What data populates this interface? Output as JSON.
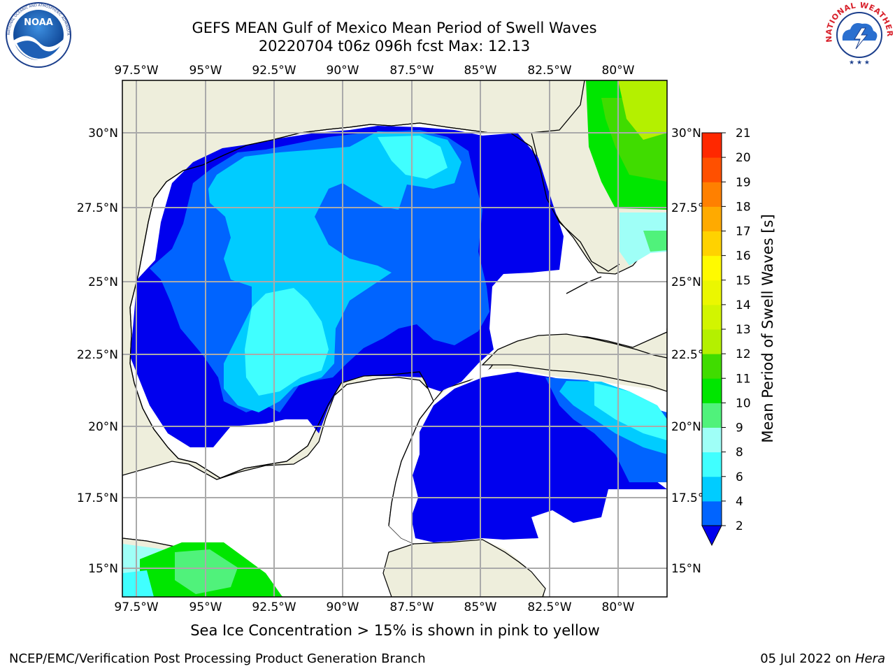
{
  "header": {
    "title": "GEFS MEAN Gulf of Mexico Mean Period of Swell Waves",
    "subtitle": "20220704 t06z 096h fcst   Max: 12.13"
  },
  "map": {
    "lon_ticks": [
      "97.5°W",
      "95°W",
      "92.5°W",
      "90°W",
      "87.5°W",
      "85°W",
      "82.5°W",
      "80°W"
    ],
    "lat_ticks": [
      "30°N",
      "27.5°N",
      "25°N",
      "22.5°N",
      "20°N",
      "17.5°N",
      "15°N"
    ],
    "lon_range": [
      -98,
      -78.3
    ],
    "lat_range": [
      14,
      31.8
    ],
    "land_color": "#eeeedc",
    "ocean_nodata_color": "#ffffff",
    "grid": true
  },
  "colorbar": {
    "label": "Mean Period of Swell Waves [s]",
    "levels": [
      2,
      4,
      6,
      8,
      9,
      10,
      11,
      12,
      13,
      14,
      15,
      16,
      17,
      18,
      19,
      20,
      21
    ],
    "tick_labels": [
      "2",
      "4",
      "6",
      "8",
      "9",
      "10",
      "11",
      "12",
      "13",
      "14",
      "15",
      "16",
      "17",
      "18",
      "19",
      "20",
      "21"
    ],
    "colors": [
      "#0064ff",
      "#00ccff",
      "#40ffff",
      "#9ffff7",
      "#50f27b",
      "#00e600",
      "#40dc00",
      "#b4f000",
      "#d2f500",
      "#ebf700",
      "#fffa00",
      "#ffd200",
      "#ffaa00",
      "#ff8000",
      "#ff5000",
      "#ff2800",
      "#ff0000"
    ],
    "under_color": "#0000ee",
    "extend": "min"
  },
  "legend_colors": {
    "band_0_2": "#0000ee",
    "band_2_4": "#0064ff",
    "band_4_6": "#00ccff",
    "band_6_8": "#40ffff",
    "band_8_9": "#9ffff7",
    "band_9_10": "#50f27b",
    "band_10_11": "#00e600",
    "band_11_12": "#40dc00",
    "band_12_13": "#b4f000"
  },
  "caption": "Sea Ice Concentration > 15% is shown in pink to yellow",
  "footer": {
    "left": "NCEP/EMC/Verification Post Processing Product Generation Branch",
    "right_date": "05 Jul 2022 on",
    "right_host": "Hera"
  },
  "logos": {
    "left": "noaa-logo",
    "right": "nws-logo",
    "right_text": "NATIONAL WEATHER SERVICE",
    "left_text": "NATIONAL OCEANIC AND ATMOSPHERIC ADMINISTRATION · U.S. DEPARTMENT OF COMMERCE"
  }
}
